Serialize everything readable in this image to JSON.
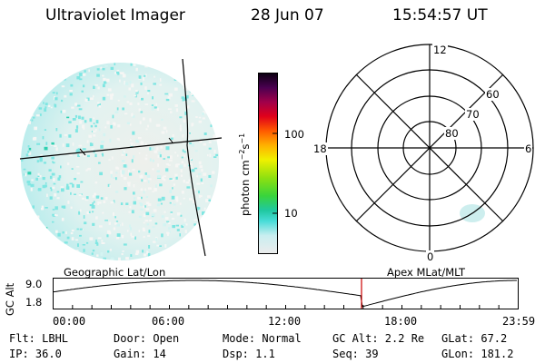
{
  "header": {
    "title": "Ultraviolet Imager",
    "date": "28 Jun 07",
    "time": "15:54:57 UT"
  },
  "colorbar": {
    "unit_label": "photon cm",
    "unit_exp1": "−2",
    "unit_mid": "s",
    "unit_exp2": "−1",
    "tick_100": "100",
    "tick_10": "10"
  },
  "polar": {
    "mlt_labels": {
      "top": "12",
      "bottom": "0",
      "left": "18",
      "right": "6"
    },
    "lat_labels": {
      "l60": "60",
      "l70": "70",
      "l80": "80"
    }
  },
  "timeline": {
    "left_title": "Geographic Lat/Lon",
    "right_title": "Apex MLat/MLT",
    "ylabel": "GC Alt",
    "ytick_top": "9.0",
    "ytick_bottom": "1.8",
    "xticks": [
      "00:00",
      "06:00",
      "12:00",
      "18:00",
      "23:59"
    ],
    "marker_color": "#cc0000"
  },
  "status": {
    "filter": "Flt: LBHL",
    "door": "Door: Open",
    "mode": "Mode: Normal",
    "gc_alt": "GC Alt: 2.2 Re",
    "glat": "GLat:  67.2",
    "ip": "IP: 36.0",
    "gain": "Gain: 14",
    "dsp": "Dsp:     1.1",
    "seq": "Seq: 39",
    "glon": "GLon: 181.2"
  }
}
